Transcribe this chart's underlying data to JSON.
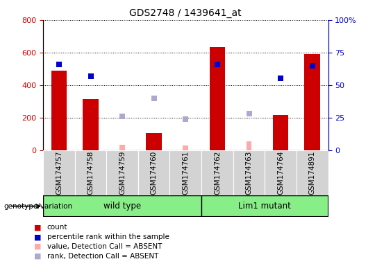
{
  "title": "GDS2748 / 1439641_at",
  "samples": [
    "GSM174757",
    "GSM174758",
    "GSM174759",
    "GSM174760",
    "GSM174761",
    "GSM174762",
    "GSM174763",
    "GSM174764",
    "GSM174891"
  ],
  "count": [
    490,
    315,
    null,
    105,
    null,
    635,
    null,
    215,
    590
  ],
  "count_absent": [
    null,
    null,
    35,
    null,
    30,
    null,
    55,
    null,
    null
  ],
  "percentile_rank": [
    66,
    57,
    null,
    null,
    null,
    66,
    null,
    55,
    65
  ],
  "percentile_rank_absent": [
    null,
    null,
    26,
    40,
    24,
    null,
    28,
    null,
    null
  ],
  "left_ylim": [
    0,
    800
  ],
  "right_ylim": [
    0,
    100
  ],
  "left_yticks": [
    0,
    200,
    400,
    600,
    800
  ],
  "right_yticks": [
    0,
    25,
    50,
    75,
    100
  ],
  "right_yticklabels": [
    "0",
    "25",
    "50",
    "75",
    "100%"
  ],
  "bar_color": "#cc0000",
  "bar_absent_color": "#ffaaaa",
  "rank_color": "#0000cc",
  "rank_absent_color": "#aaaacc",
  "green_color": "#88ee88",
  "left_label_color": "#cc0000",
  "right_label_color": "#0000cc",
  "genotype_label": "genotype/variation",
  "wild_type_label": "wild type",
  "lim1_label": "Lim1 mutant",
  "wild_type_count": 5,
  "lim1_count": 4,
  "legend_items": [
    {
      "color": "#cc0000",
      "label": "count"
    },
    {
      "color": "#0000cc",
      "label": "percentile rank within the sample"
    },
    {
      "color": "#ffaaaa",
      "label": "value, Detection Call = ABSENT"
    },
    {
      "color": "#aaaacc",
      "label": "rank, Detection Call = ABSENT"
    }
  ]
}
